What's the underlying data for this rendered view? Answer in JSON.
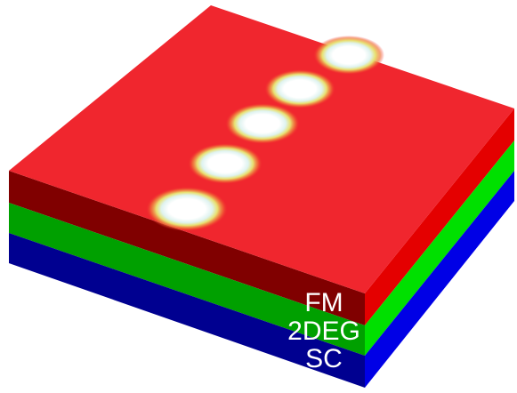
{
  "layers": [
    "FM",
    "2DEG",
    "SC"
  ]
}
